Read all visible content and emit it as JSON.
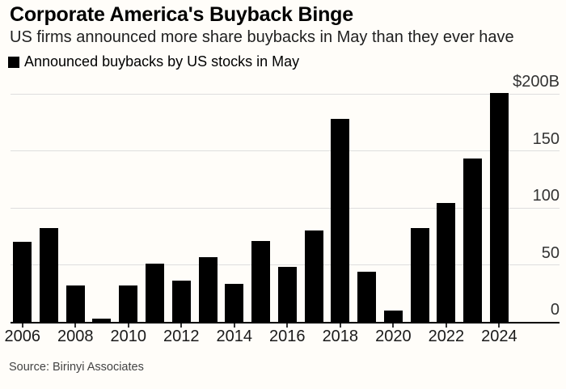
{
  "header": {
    "title": "Corporate America's Buyback Binge",
    "subtitle": "US firms announced more share buybacks in May than they ever have"
  },
  "legend": {
    "label": "Announced buybacks by US stocks in May",
    "swatch_color": "#000000"
  },
  "chart_data": {
    "type": "bar",
    "title": "Announced buybacks by US stocks in May",
    "categories": [
      2006,
      2007,
      2008,
      2009,
      2010,
      2011,
      2012,
      2013,
      2014,
      2015,
      2016,
      2017,
      2018,
      2019,
      2020,
      2021,
      2022,
      2023,
      2024
    ],
    "values": [
      70,
      82,
      32,
      3,
      32,
      51,
      36,
      57,
      33,
      71,
      48,
      80,
      178,
      44,
      10,
      82,
      104,
      143,
      201
    ],
    "unit": "billions of US dollars",
    "xlabel": "",
    "ylabel": "$B",
    "ylim": [
      0,
      200
    ],
    "y_ticks": [
      0,
      50,
      100,
      150,
      200
    ],
    "y_tick_labels": [
      "0",
      "50",
      "100",
      "150",
      "$200B"
    ],
    "x_tick_years": [
      2006,
      2008,
      2010,
      2012,
      2014,
      2016,
      2018,
      2020,
      2022,
      2024
    ],
    "grid": "horizontal",
    "bar_color": "#000000",
    "gridline_color": "#dedede",
    "axis_color": "#000000",
    "legend_position": "top-left",
    "y_axis_side": "right"
  },
  "footer": {
    "source": "Source: Birinyi Associates"
  }
}
